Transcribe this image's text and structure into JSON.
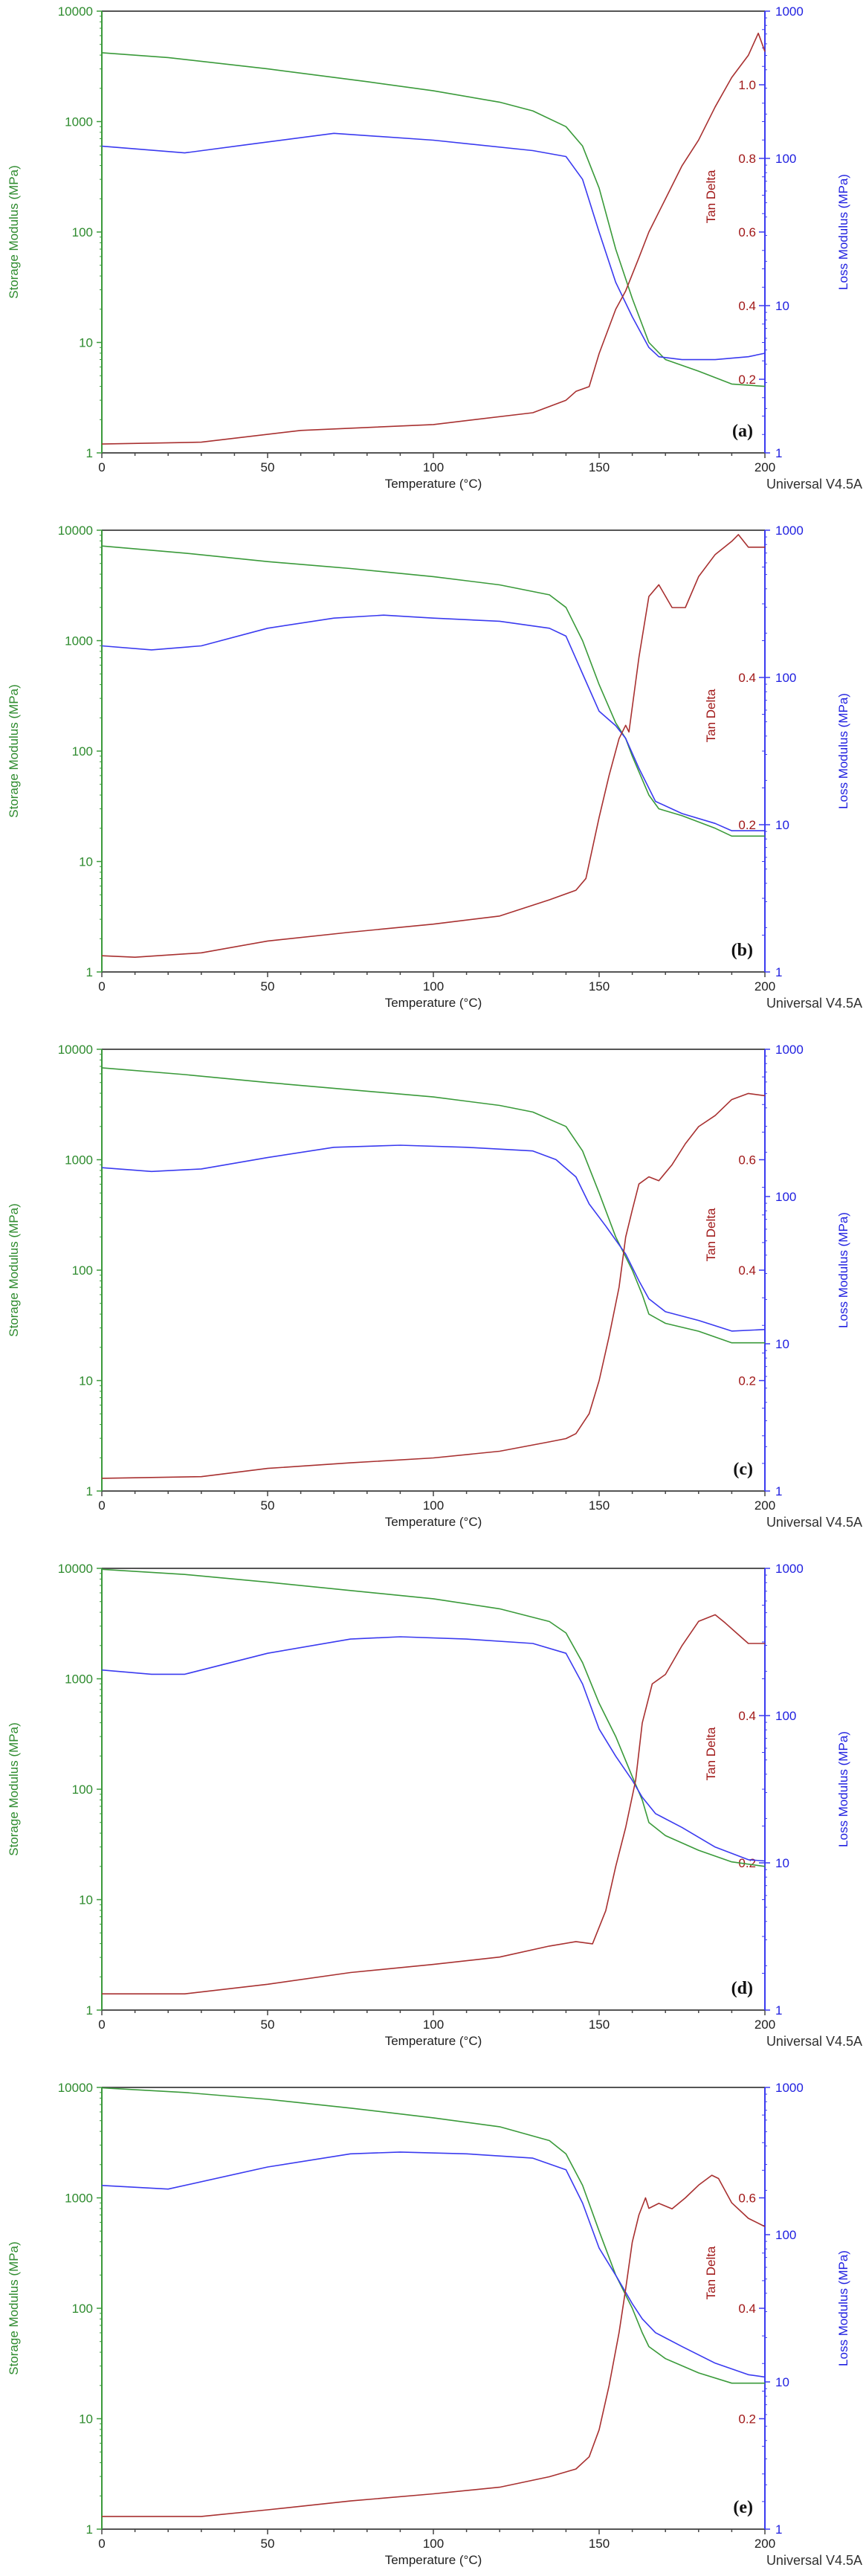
{
  "figure": {
    "software_label": "Universal V4.5A",
    "colors": {
      "storage": "#3a9a3a",
      "loss": "#3a3af0",
      "tan": "#a83030",
      "frame": "#555555"
    }
  },
  "chart_data": [
    {
      "type": "line",
      "panel_label": "(a)",
      "xlabel": "Temperature (°C)",
      "ylabel_left": "Storage Modulus (MPa)",
      "ylabel_right_inner": "Tan Delta",
      "ylabel_right_outer": "Loss Modulus (MPa)",
      "xlim": [
        0,
        200
      ],
      "x_ticks": [
        "0",
        "50",
        "100",
        "150",
        "200"
      ],
      "storage_ylim": [
        1,
        10000
      ],
      "storage_scale": "log",
      "storage_ticks": [
        "1",
        "10",
        "100",
        "1000",
        "10000"
      ],
      "loss_ylim": [
        1,
        1000
      ],
      "loss_scale": "log",
      "loss_ticks": [
        "1",
        "10",
        "100",
        "1000"
      ],
      "tan_ylim": [
        0,
        1.2
      ],
      "tan_scale": "linear",
      "tan_ticks": [
        "0.2",
        "0.4",
        "0.6",
        "0.8",
        "1.0"
      ],
      "grid": false,
      "series": [
        {
          "name": "Storage Modulus",
          "axis": "storage",
          "x": [
            0,
            20,
            50,
            80,
            100,
            120,
            130,
            140,
            145,
            150,
            155,
            160,
            165,
            170,
            180,
            190,
            200
          ],
          "y": [
            4200,
            3800,
            3000,
            2300,
            1900,
            1500,
            1250,
            900,
            600,
            250,
            70,
            25,
            10,
            7,
            5.5,
            4.2,
            4.0
          ]
        },
        {
          "name": "Loss Modulus",
          "axis": "loss",
          "x": [
            0,
            25,
            45,
            70,
            100,
            130,
            140,
            145,
            150,
            155,
            160,
            165,
            168,
            175,
            185,
            195,
            200
          ],
          "y": [
            121,
            109,
            125,
            148,
            133,
            113,
            103,
            72,
            31.6,
            14.4,
            8.4,
            5.2,
            4.5,
            4.3,
            4.3,
            4.5,
            4.75
          ]
        },
        {
          "name": "Tan Delta",
          "axis": "tan",
          "x": [
            0,
            30,
            60,
            100,
            130,
            140,
            143,
            147,
            150,
            155,
            158,
            162,
            165,
            170,
            175,
            180,
            185,
            190,
            195,
            198,
            200
          ],
          "y": [
            0.024,
            0.029,
            0.061,
            0.077,
            0.109,
            0.143,
            0.167,
            0.18,
            0.27,
            0.39,
            0.44,
            0.53,
            0.6,
            0.69,
            0.78,
            0.85,
            0.94,
            1.02,
            1.08,
            1.14,
            1.09
          ]
        }
      ]
    },
    {
      "type": "line",
      "panel_label": "(b)",
      "xlabel": "Temperature (°C)",
      "ylabel_left": "Storage Modulus (MPa)",
      "ylabel_right_inner": "Tan Delta",
      "ylabel_right_outer": "Loss Modulus (MPa)",
      "xlim": [
        0,
        200
      ],
      "x_ticks": [
        "0",
        "50",
        "100",
        "150",
        "200"
      ],
      "storage_ylim": [
        1,
        10000
      ],
      "storage_scale": "log",
      "storage_ticks": [
        "1",
        "10",
        "100",
        "1000",
        "10000"
      ],
      "loss_ylim": [
        1,
        1000
      ],
      "loss_scale": "log",
      "loss_ticks": [
        "1",
        "10",
        "100",
        "1000"
      ],
      "tan_ylim": [
        0,
        0.6
      ],
      "tan_scale": "linear",
      "tan_ticks": [
        "0.2",
        "0.4"
      ],
      "grid": false,
      "series": [
        {
          "name": "Storage Modulus",
          "axis": "storage",
          "x": [
            0,
            25,
            50,
            75,
            100,
            120,
            135,
            140,
            145,
            150,
            155,
            158,
            160,
            165,
            168,
            175,
            185,
            190,
            200
          ],
          "y": [
            7200,
            6200,
            5200,
            4500,
            3800,
            3200,
            2600,
            2000,
            1000,
            400,
            180,
            130,
            90,
            40,
            30,
            26,
            20,
            17,
            17
          ]
        },
        {
          "name": "Loss Modulus",
          "axis": "loss",
          "x": [
            0,
            15,
            30,
            50,
            70,
            85,
            100,
            120,
            135,
            140,
            145,
            150,
            155,
            158,
            162,
            167,
            175,
            185,
            190,
            200
          ],
          "y": [
            164,
            154,
            164,
            216,
            253,
            265,
            253,
            241,
            216,
            191,
            106,
            59,
            47,
            38.6,
            24.2,
            14.4,
            11.9,
            10.2,
            9.1,
            9.1
          ]
        },
        {
          "name": "Tan Delta",
          "axis": "tan",
          "x": [
            0,
            10,
            30,
            50,
            75,
            100,
            120,
            135,
            143,
            146,
            150,
            153,
            156,
            158,
            159,
            162,
            165,
            168,
            172,
            176,
            180,
            185,
            190,
            192,
            195,
            200
          ],
          "y": [
            0.022,
            0.02,
            0.026,
            0.042,
            0.054,
            0.065,
            0.076,
            0.098,
            0.111,
            0.127,
            0.21,
            0.267,
            0.317,
            0.335,
            0.326,
            0.427,
            0.51,
            0.526,
            0.495,
            0.495,
            0.537,
            0.567,
            0.585,
            0.594,
            0.577,
            0.577
          ]
        }
      ]
    },
    {
      "type": "line",
      "panel_label": "(c)",
      "xlabel": "Temperature (°C)",
      "ylabel_left": "Storage Modulus (MPa)",
      "ylabel_right_inner": "Tan Delta",
      "ylabel_right_outer": "Loss Modulus (MPa)",
      "xlim": [
        0,
        200
      ],
      "x_ticks": [
        "0",
        "50",
        "100",
        "150",
        "200"
      ],
      "storage_ylim": [
        1,
        10000
      ],
      "storage_scale": "log",
      "storage_ticks": [
        "1",
        "10",
        "100",
        "1000",
        "10000"
      ],
      "loss_ylim": [
        1,
        1000
      ],
      "loss_scale": "log",
      "loss_ticks": [
        "1",
        "10",
        "100",
        "1000"
      ],
      "tan_ylim": [
        0,
        0.8
      ],
      "tan_scale": "linear",
      "tan_ticks": [
        "0.2",
        "0.4",
        "0.6"
      ],
      "grid": false,
      "series": [
        {
          "name": "Storage Modulus",
          "axis": "storage",
          "x": [
            0,
            25,
            50,
            75,
            100,
            120,
            130,
            140,
            145,
            150,
            155,
            160,
            163,
            165,
            170,
            180,
            190,
            200
          ],
          "y": [
            6800,
            5900,
            5000,
            4300,
            3700,
            3100,
            2700,
            2000,
            1200,
            500,
            200,
            100,
            60,
            40,
            33,
            28,
            22,
            22
          ]
        },
        {
          "name": "Loss Modulus",
          "axis": "loss",
          "x": [
            0,
            15,
            30,
            50,
            70,
            90,
            110,
            130,
            137,
            143,
            147,
            152,
            158,
            162,
            165,
            170,
            180,
            190,
            200
          ],
          "y": [
            157,
            148,
            154,
            184,
            216,
            223,
            216,
            204,
            178,
            136,
            89,
            63,
            40.7,
            26.8,
            20.2,
            16.5,
            14.4,
            12.2,
            12.5
          ]
        },
        {
          "name": "Tan Delta",
          "axis": "tan",
          "x": [
            0,
            30,
            50,
            75,
            100,
            120,
            135,
            140,
            143,
            147,
            150,
            153,
            156,
            158,
            160,
            162,
            165,
            168,
            172,
            176,
            180,
            185,
            190,
            195,
            200
          ],
          "y": [
            0.023,
            0.026,
            0.041,
            0.051,
            0.06,
            0.072,
            0.089,
            0.095,
            0.104,
            0.14,
            0.2,
            0.28,
            0.369,
            0.46,
            0.509,
            0.556,
            0.569,
            0.562,
            0.591,
            0.629,
            0.66,
            0.68,
            0.709,
            0.72,
            0.716
          ]
        }
      ]
    },
    {
      "type": "line",
      "panel_label": "(d)",
      "xlabel": "Temperature (°C)",
      "ylabel_left": "Storage Modulus (MPa)",
      "ylabel_right_inner": "Tan Delta",
      "ylabel_right_outer": "Loss Modulus (MPa)",
      "xlim": [
        0,
        200
      ],
      "x_ticks": [
        "0",
        "50",
        "100",
        "150",
        "200"
      ],
      "storage_ylim": [
        1,
        10000
      ],
      "storage_scale": "log",
      "storage_ticks": [
        "1",
        "10",
        "100",
        "1000",
        "10000"
      ],
      "loss_ylim": [
        1,
        1000
      ],
      "loss_scale": "log",
      "loss_ticks": [
        "1",
        "10",
        "100",
        "1000"
      ],
      "tan_ylim": [
        0,
        0.6
      ],
      "tan_scale": "linear",
      "tan_ticks": [
        "0.2",
        "0.4"
      ],
      "grid": false,
      "series": [
        {
          "name": "Storage Modulus",
          "axis": "storage",
          "x": [
            0,
            25,
            50,
            75,
            100,
            120,
            135,
            140,
            145,
            150,
            155,
            160,
            163,
            165,
            170,
            180,
            190,
            200
          ],
          "y": [
            9800,
            8800,
            7500,
            6300,
            5300,
            4300,
            3300,
            2600,
            1400,
            600,
            300,
            130,
            80,
            50,
            38,
            28,
            22,
            20
          ]
        },
        {
          "name": "Loss Modulus",
          "axis": "loss",
          "x": [
            0,
            15,
            25,
            50,
            75,
            90,
            110,
            130,
            140,
            145,
            150,
            155,
            160,
            163,
            167,
            175,
            185,
            195,
            200
          ],
          "y": [
            204,
            191,
            191,
            265,
            331,
            343,
            331,
            309,
            265,
            164,
            81,
            53,
            36.3,
            27.9,
            21.6,
            17.4,
            12.8,
            10.5,
            10.3
          ]
        },
        {
          "name": "Tan Delta",
          "axis": "tan",
          "x": [
            0,
            25,
            50,
            75,
            100,
            120,
            135,
            143,
            148,
            152,
            155,
            158,
            161,
            163,
            166,
            170,
            175,
            180,
            185,
            188,
            192,
            195,
            200
          ],
          "y": [
            0.022,
            0.022,
            0.035,
            0.051,
            0.062,
            0.072,
            0.087,
            0.093,
            0.09,
            0.135,
            0.195,
            0.248,
            0.312,
            0.39,
            0.443,
            0.456,
            0.495,
            0.528,
            0.537,
            0.526,
            0.51,
            0.498,
            0.498
          ]
        }
      ]
    },
    {
      "type": "line",
      "panel_label": "(e)",
      "xlabel": "Temperature (°C)",
      "ylabel_left": "Storage Modulus (MPa)",
      "ylabel_right_inner": "Tan Delta",
      "ylabel_right_outer": "Loss Modulus (MPa)",
      "xlim": [
        0,
        200
      ],
      "x_ticks": [
        "0",
        "50",
        "100",
        "150",
        "200"
      ],
      "storage_ylim": [
        1,
        10000
      ],
      "storage_scale": "log",
      "storage_ticks": [
        "1",
        "10",
        "100",
        "1000",
        "10000"
      ],
      "loss_ylim": [
        1,
        1000
      ],
      "loss_scale": "log",
      "loss_ticks": [
        "1",
        "10",
        "100",
        "1000"
      ],
      "tan_ylim": [
        0,
        0.8
      ],
      "tan_scale": "linear",
      "tan_ticks": [
        "0.2",
        "0.4",
        "0.6"
      ],
      "grid": false,
      "series": [
        {
          "name": "Storage Modulus",
          "axis": "storage",
          "x": [
            0,
            25,
            50,
            75,
            100,
            120,
            135,
            140,
            145,
            150,
            155,
            160,
            163,
            165,
            170,
            180,
            190,
            200
          ],
          "y": [
            9900,
            9000,
            7800,
            6500,
            5300,
            4400,
            3300,
            2500,
            1300,
            500,
            200,
            100,
            60,
            45,
            35,
            26,
            21,
            21
          ]
        },
        {
          "name": "Loss Modulus",
          "axis": "loss",
          "x": [
            0,
            20,
            50,
            75,
            90,
            110,
            130,
            140,
            145,
            150,
            155,
            160,
            163,
            167,
            175,
            185,
            195,
            200
          ],
          "y": [
            216,
            204,
            288,
            354,
            364,
            354,
            331,
            276,
            164,
            81,
            53,
            34,
            26.8,
            21.6,
            17.4,
            13.4,
            11.2,
            10.8
          ]
        },
        {
          "name": "Tan Delta",
          "axis": "tan",
          "x": [
            0,
            30,
            50,
            75,
            100,
            120,
            135,
            143,
            147,
            150,
            153,
            156,
            158,
            160,
            162,
            164,
            165,
            168,
            172,
            176,
            180,
            184,
            186,
            190,
            195,
            200
          ],
          "y": [
            0.023,
            0.023,
            0.035,
            0.051,
            0.064,
            0.076,
            0.095,
            0.109,
            0.131,
            0.18,
            0.26,
            0.356,
            0.435,
            0.52,
            0.569,
            0.6,
            0.581,
            0.59,
            0.58,
            0.6,
            0.623,
            0.641,
            0.635,
            0.591,
            0.563,
            0.548
          ]
        }
      ]
    }
  ]
}
